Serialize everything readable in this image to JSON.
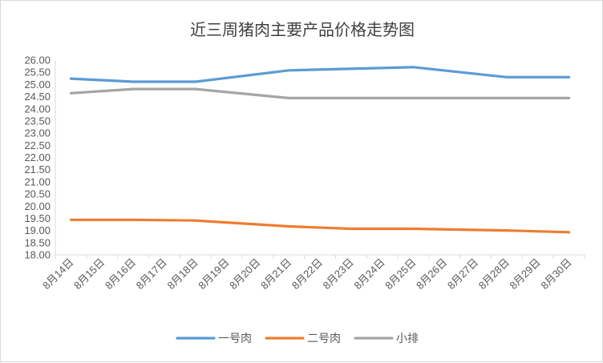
{
  "chart_data": {
    "type": "line",
    "title": "近三周猪肉主要产品价格走势图",
    "xlabel": "",
    "ylabel": "",
    "categories": [
      "8月14日",
      "8月15日",
      "8月16日",
      "8月17日",
      "8月18日",
      "8月19日",
      "8月20日",
      "8月21日",
      "8月22日",
      "8月23日",
      "8月24日",
      "8月25日",
      "8月26日",
      "8月27日",
      "8月28日",
      "8月29日",
      "8月30日"
    ],
    "ylim": [
      18,
      26
    ],
    "yticks": [
      "18.00",
      "18.50",
      "19.00",
      "19.50",
      "20.00",
      "20.50",
      "21.00",
      "21.50",
      "22.00",
      "22.50",
      "23.00",
      "23.50",
      "24.00",
      "24.50",
      "25.00",
      "25.50",
      "26.00"
    ],
    "series": [
      {
        "name": "一号肉",
        "color": "#5b9bd5",
        "points": [
          {
            "x": "8月14日",
            "y": 25.24
          },
          {
            "x": "8月16日",
            "y": 25.11
          },
          {
            "x": "8月18日",
            "y": 25.11
          },
          {
            "x": "8月21日",
            "y": 25.58
          },
          {
            "x": "8月25日",
            "y": 25.71
          },
          {
            "x": "8月28日",
            "y": 25.3
          },
          {
            "x": "8月30日",
            "y": 25.3
          }
        ]
      },
      {
        "name": "二号肉",
        "color": "#ed7d31",
        "points": [
          {
            "x": "8月14日",
            "y": 19.44
          },
          {
            "x": "8月16日",
            "y": 19.44
          },
          {
            "x": "8月18日",
            "y": 19.41
          },
          {
            "x": "8月21日",
            "y": 19.17
          },
          {
            "x": "8月23日",
            "y": 19.07
          },
          {
            "x": "8月25日",
            "y": 19.07
          },
          {
            "x": "8月28日",
            "y": 19.0
          },
          {
            "x": "8月30日",
            "y": 18.93
          }
        ]
      },
      {
        "name": "小排",
        "color": "#a5a5a5",
        "points": [
          {
            "x": "8月14日",
            "y": 24.64
          },
          {
            "x": "8月16日",
            "y": 24.81
          },
          {
            "x": "8月18日",
            "y": 24.81
          },
          {
            "x": "8月21日",
            "y": 24.44
          },
          {
            "x": "8月25日",
            "y": 24.44
          },
          {
            "x": "8月28日",
            "y": 24.44
          },
          {
            "x": "8月30日",
            "y": 24.44
          }
        ]
      }
    ],
    "grid": false,
    "legend_position": "bottom",
    "axis_color": "#d9d9d9",
    "text_color": "#595959"
  }
}
